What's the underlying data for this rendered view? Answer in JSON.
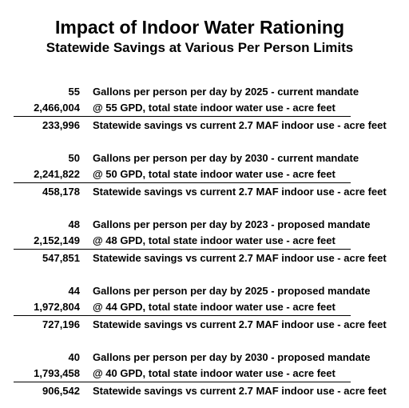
{
  "title": "Impact of Indoor Water Rationing",
  "subtitle": "Statewide Savings at Various Per Person Limits",
  "groups": [
    {
      "limit": "55",
      "limit_desc": "Gallons per person per day by 2025 - current mandate",
      "use": "2,466,004",
      "use_desc": "@ 55 GPD, total state indoor water use - acre feet",
      "savings": "233,996",
      "savings_desc": "Statewide savings vs current 2.7 MAF indoor use - acre feet"
    },
    {
      "limit": "50",
      "limit_desc": "Gallons per person per day by 2030 - current mandate",
      "use": "2,241,822",
      "use_desc": "@ 50 GPD, total state indoor water use - acre feet",
      "savings": "458,178",
      "savings_desc": "Statewide savings vs current 2.7 MAF indoor use - acre feet"
    },
    {
      "limit": "48",
      "limit_desc": "Gallons per person per day by 2023 - proposed mandate",
      "use": "2,152,149",
      "use_desc": "@ 48 GPD, total state indoor water use - acre feet",
      "savings": "547,851",
      "savings_desc": "Statewide savings vs current 2.7 MAF indoor use - acre feet"
    },
    {
      "limit": "44",
      "limit_desc": "Gallons per person per day by 2025 - proposed mandate",
      "use": "1,972,804",
      "use_desc": "@ 44 GPD, total state indoor water use - acre feet",
      "savings": "727,196",
      "savings_desc": "Statewide savings vs current 2.7 MAF indoor use - acre feet"
    },
    {
      "limit": "40",
      "limit_desc": "Gallons per person per day by 2030 - proposed mandate",
      "use": "1,793,458",
      "use_desc": "@ 40 GPD, total state indoor water use - acre feet",
      "savings": "906,542",
      "savings_desc": "Statewide savings vs current 2.7 MAF indoor use - acre feet"
    }
  ]
}
